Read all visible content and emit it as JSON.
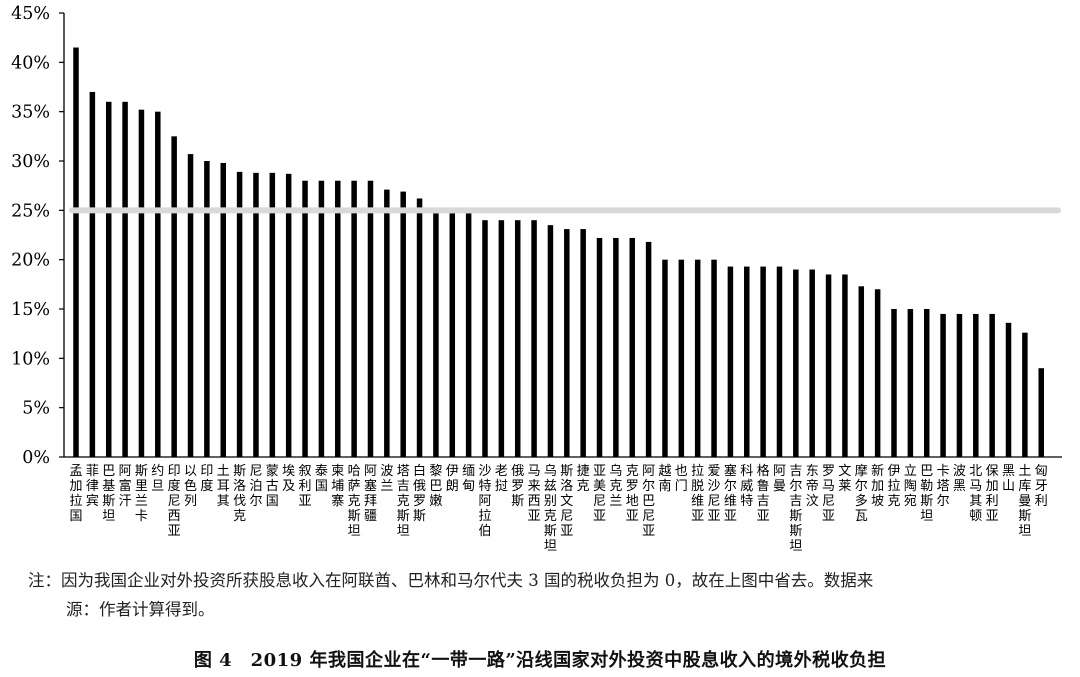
{
  "chart_data": {
    "type": "bar",
    "categories": [
      "孟加拉国",
      "菲律宾",
      "巴基斯坦",
      "阿富汗",
      "斯里兰卡",
      "约旦",
      "印度尼西亚",
      "以色列",
      "印度",
      "土耳其",
      "斯洛伐克",
      "尼泊尔",
      "蒙古国",
      "埃及",
      "叙利亚",
      "泰国",
      "柬埔寨",
      "哈萨克斯坦",
      "阿塞拜疆",
      "波兰",
      "塔吉克斯坦",
      "白俄罗斯",
      "黎巴嫩",
      "伊朗",
      "缅甸",
      "沙特阿拉伯",
      "老挝",
      "俄罗斯",
      "马来西亚",
      "乌兹别克斯坦",
      "斯洛文尼亚",
      "捷克",
      "亚美尼亚",
      "乌克兰",
      "克罗地亚",
      "阿尔巴尼亚",
      "越南",
      "也门",
      "拉脱维亚",
      "爱沙尼亚",
      "塞尔维亚",
      "科威特",
      "格鲁吉亚",
      "阿曼",
      "吉尔吉斯斯坦",
      "东帝汶",
      "罗马尼亚",
      "文莱",
      "摩尔多瓦",
      "新加坡",
      "伊拉克",
      "立陶宛",
      "巴勒斯坦",
      "卡塔尔",
      "波黑",
      "北马其顿",
      "保加利亚",
      "黑山",
      "土库曼斯坦",
      "匈牙利"
    ],
    "values": [
      41.5,
      37.0,
      36.0,
      36.0,
      35.2,
      35.0,
      32.5,
      30.7,
      30.0,
      29.8,
      28.9,
      28.8,
      28.8,
      28.7,
      28.0,
      28.0,
      28.0,
      28.0,
      28.0,
      27.1,
      26.9,
      26.2,
      24.7,
      24.7,
      24.7,
      24.0,
      24.0,
      24.0,
      24.0,
      23.5,
      23.1,
      23.1,
      22.2,
      22.2,
      22.2,
      21.8,
      20.0,
      20.0,
      20.0,
      20.0,
      19.3,
      19.3,
      19.3,
      19.3,
      19.0,
      19.0,
      18.5,
      18.5,
      17.3,
      17.0,
      15.0,
      15.0,
      15.0,
      14.5,
      14.5,
      14.5,
      14.5,
      13.6,
      12.6,
      9.0
    ],
    "reference_line": 25,
    "yticks": [
      "0%",
      "5%",
      "10%",
      "15%",
      "20%",
      "25%",
      "30%",
      "35%",
      "40%",
      "45%"
    ],
    "ylim": [
      0,
      45
    ],
    "bar_color": "#000000",
    "reference_color": "#d9d9d9",
    "grid": false,
    "legend": "none"
  },
  "note": {
    "label": "注：",
    "line1": "因为我国企业对外投资所获股息收入在阿联酋、巴林和马尔代夫 3 国的税收负担为 0，故在上图中省去。数据来",
    "line2": "源：作者计算得到。"
  },
  "caption": "图 4　2019 年我国企业在“一带一路”沿线国家对外投资中股息收入的境外税收负担"
}
